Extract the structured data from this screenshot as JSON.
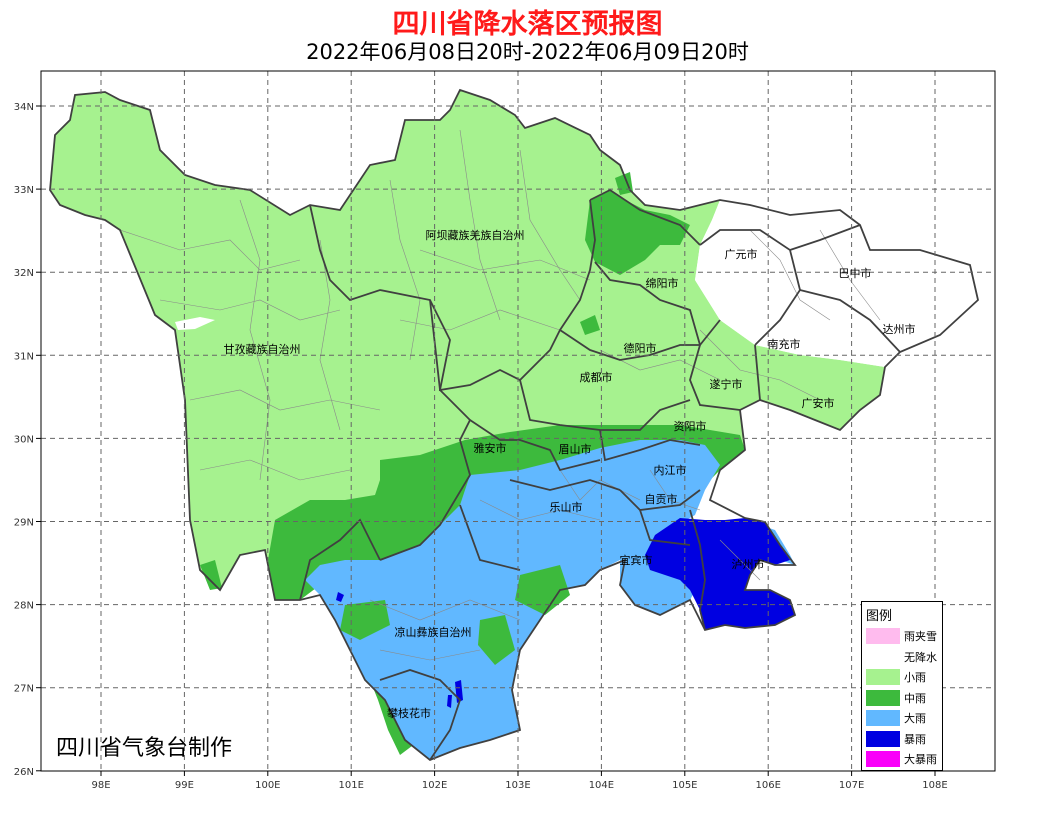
{
  "title": "四川省降水落区预报图",
  "subtitle": "2022年06月08日20时-2022年06月09日20时",
  "credit": "四川省气象台制作",
  "axes": {
    "lon_ticks": [
      "98E",
      "99E",
      "100E",
      "101E",
      "102E",
      "103E",
      "104E",
      "105E",
      "106E",
      "107E",
      "108E"
    ],
    "lat_ticks": [
      "34N",
      "33N",
      "32N",
      "31N",
      "30N",
      "29N",
      "28N",
      "27N",
      "26N"
    ]
  },
  "regions": [
    {
      "name": "阿坝藏族羌族自治州"
    },
    {
      "name": "甘孜藏族自治州"
    },
    {
      "name": "广元市"
    },
    {
      "name": "巴中市"
    },
    {
      "name": "绵阳市"
    },
    {
      "name": "达州市"
    },
    {
      "name": "德阳市"
    },
    {
      "name": "南充市"
    },
    {
      "name": "成都市"
    },
    {
      "name": "遂宁市"
    },
    {
      "name": "广安市"
    },
    {
      "name": "资阳市"
    },
    {
      "name": "雅安市"
    },
    {
      "name": "眉山市"
    },
    {
      "name": "内江市"
    },
    {
      "name": "乐山市"
    },
    {
      "name": "自贡市"
    },
    {
      "name": "宜宾市"
    },
    {
      "name": "泸州市"
    },
    {
      "name": "凉山彝族自治州"
    },
    {
      "name": "攀枝花市"
    }
  ],
  "legend": {
    "title": "图例",
    "items": [
      {
        "label": "雨夹雪",
        "color": "#ffbbee"
      },
      {
        "label": "无降水",
        "color": "#ffffff"
      },
      {
        "label": "小雨",
        "color": "#a6f28f"
      },
      {
        "label": "中雨",
        "color": "#3dba3d"
      },
      {
        "label": "大雨",
        "color": "#61b8ff"
      },
      {
        "label": "暴雨",
        "color": "#0000e1"
      },
      {
        "label": "大暴雨",
        "color": "#fa00fa"
      }
    ]
  }
}
